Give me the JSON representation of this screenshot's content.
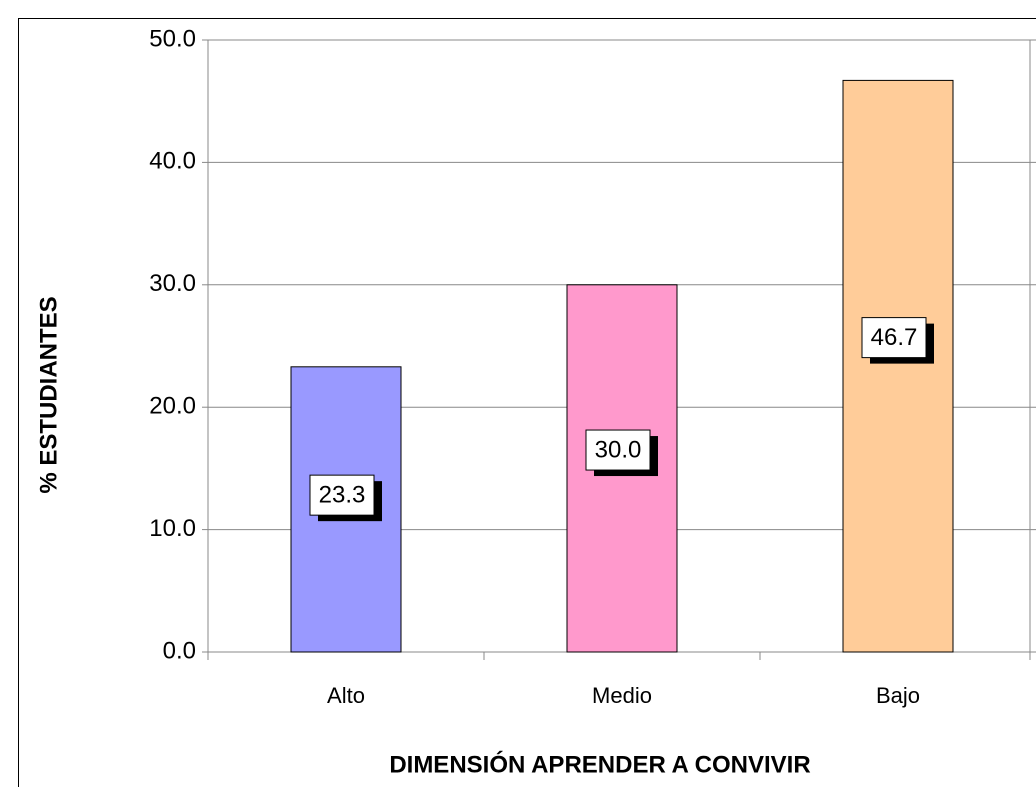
{
  "chart_data": {
    "type": "bar",
    "x_label": "DIMENSIÓN APRENDER A CONVIVIR",
    "y_label": "% ESTUDIANTES",
    "categories": [
      "Alto",
      "Medio",
      "Bajo"
    ],
    "values": [
      23.3,
      30.0,
      46.7
    ],
    "value_labels": [
      "23.3",
      "30.0",
      "46.7"
    ],
    "colors": [
      "#9999ff",
      "#ff99cc",
      "#ffcc99"
    ],
    "ylim": [
      0,
      50
    ],
    "yticks": [
      {
        "value": 0,
        "label": "0.0"
      },
      {
        "value": 10,
        "label": "10.0"
      },
      {
        "value": 20,
        "label": "20.0"
      },
      {
        "value": 30,
        "label": "30.0"
      },
      {
        "value": 40,
        "label": "40.0"
      },
      {
        "value": 50,
        "label": "50.0"
      }
    ],
    "grid": true
  }
}
